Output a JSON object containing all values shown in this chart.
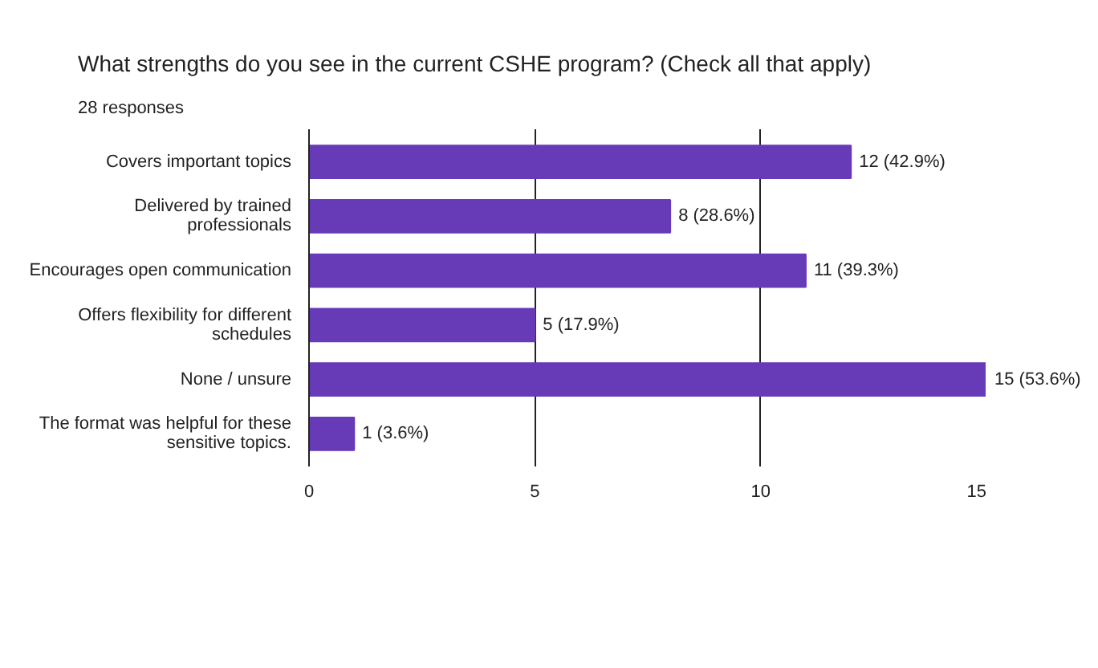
{
  "chart_data": {
    "type": "bar",
    "orientation": "horizontal",
    "title": "What strengths do you see in the current CSHE program? (Check all that apply)",
    "subtitle": "28 responses",
    "categories": [
      "Covers important topics",
      "Delivered by trained professionals",
      "Encourages open communication",
      "Offers flexibility for different schedules",
      "None / unsure",
      "The format was helpful for these sensitive topics."
    ],
    "values": [
      12,
      8,
      11,
      5,
      15,
      1
    ],
    "value_labels": [
      "12 (42.9%)",
      "8 (28.6%)",
      "11 (39.3%)",
      "5 (17.9%)",
      "15 (53.6%)",
      "1 (3.6%)"
    ],
    "color": "#673ab7",
    "xlim": [
      0,
      15
    ],
    "xticks": [
      0,
      5,
      10,
      15
    ],
    "grid": "x"
  }
}
